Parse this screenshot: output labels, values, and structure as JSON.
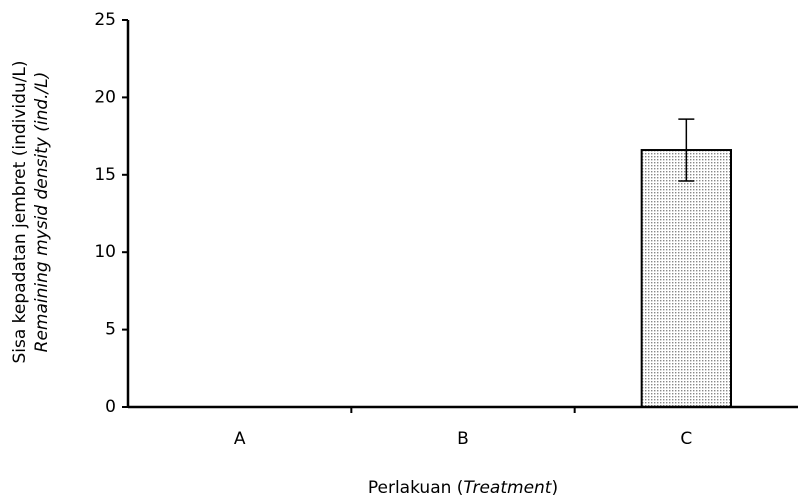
{
  "chart_data": {
    "type": "bar",
    "y_label": [
      "Sisa kepadatan jembret (individu/L)",
      "Remaining mysid density (ind./L)"
    ],
    "x_label": [
      "Perlakuan (",
      "Treatment",
      ")"
    ],
    "categories": [
      "A",
      "B",
      "C"
    ],
    "values": [
      0,
      0,
      16.6
    ],
    "errors": [
      0,
      0,
      2.0
    ],
    "color": "#d8d8d8",
    "ylim": [
      0,
      25
    ],
    "yticks": [
      0,
      5,
      10,
      15,
      20,
      25
    ],
    "grid": false
  }
}
